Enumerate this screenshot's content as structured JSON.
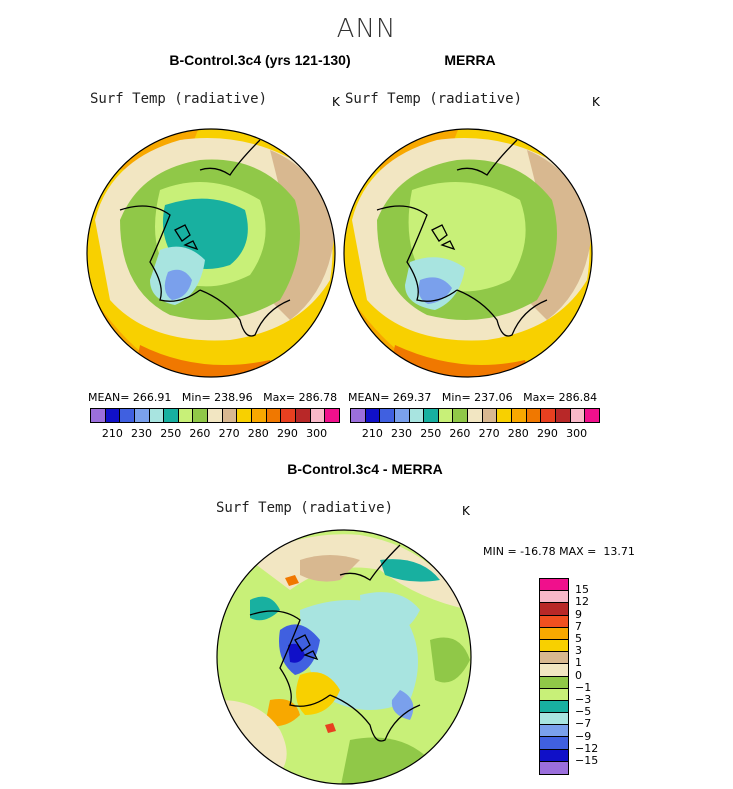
{
  "title": "ANN",
  "left_panel": {
    "title": "B-Control.3c4 (yrs 121-130)",
    "variable": "Surf Temp (radiative)",
    "units": "K",
    "mean_label": "MEAN=",
    "mean": "266.91",
    "min_label": "Min=",
    "min": "238.96",
    "max_label": "Max=",
    "max": "286.78"
  },
  "right_panel": {
    "title": "MERRA",
    "variable": "Surf Temp (radiative)",
    "units": "K",
    "mean_label": "MEAN=",
    "mean": "269.37",
    "min_label": "Min=",
    "min": "237.06",
    "max_label": "Max=",
    "max": "286.84"
  },
  "diff_panel": {
    "title": "B-Control.3c4 - MERRA",
    "variable": "Surf Temp (radiative)",
    "units": "K",
    "minmax_text": "MIN = -16.78 MAX =  13.71"
  },
  "colorbar_abs": {
    "colors": [
      "#9b6fdc",
      "#1010c8",
      "#4060e0",
      "#7aa0ec",
      "#a8e4e0",
      "#18b0a0",
      "#c8f078",
      "#90c848",
      "#f2e6c2",
      "#d8b890",
      "#f8d000",
      "#f8a800",
      "#f07800",
      "#e84020",
      "#b82828",
      "#f8b8c8",
      "#f0108c"
    ],
    "ticks": [
      "210",
      "230",
      "250",
      "260",
      "270",
      "280",
      "290",
      "300"
    ]
  },
  "colorbar_diff": {
    "colors": [
      "#f0108c",
      "#f8b8c8",
      "#b82828",
      "#f05020",
      "#f8a800",
      "#f8d000",
      "#d8b890",
      "#f2e6c2",
      "#90c848",
      "#c8f078",
      "#18b0a0",
      "#a8e4e0",
      "#7aa0ec",
      "#4060e0",
      "#1010c8",
      "#9b6fdc"
    ],
    "ticks": [
      "15",
      "12",
      "9",
      "7",
      "5",
      "3",
      "1",
      "0",
      "−1",
      "−3",
      "−5",
      "−7",
      "−9",
      "−12",
      "−15"
    ]
  }
}
